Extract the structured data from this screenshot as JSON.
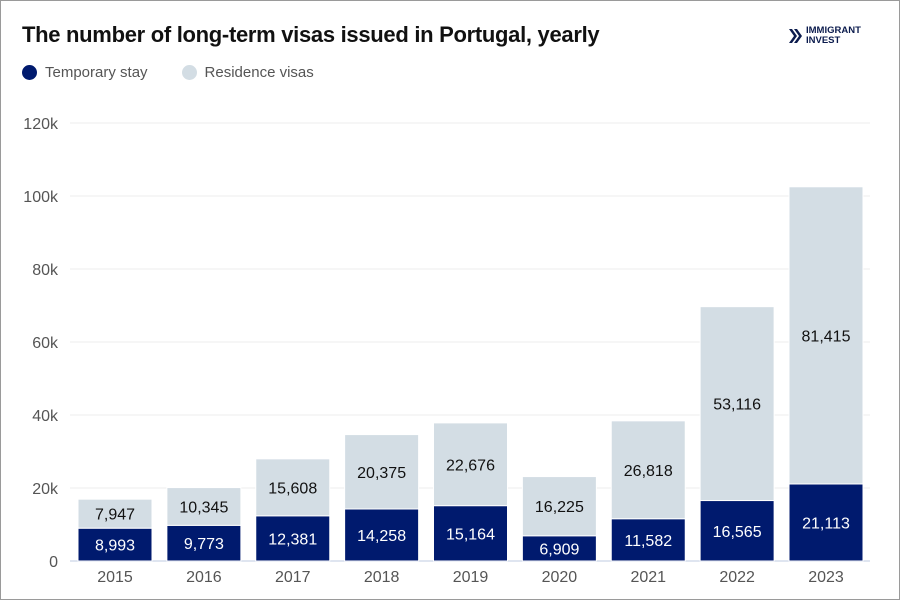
{
  "chart_data": {
    "type": "bar",
    "stacked": true,
    "title": "The number of long-term visas issued in Portugal, yearly",
    "categories": [
      "2015",
      "2016",
      "2017",
      "2018",
      "2019",
      "2020",
      "2021",
      "2022",
      "2023"
    ],
    "series": [
      {
        "name": "Temporary stay",
        "color": "#001a6e",
        "values": [
          8993,
          9773,
          12381,
          14258,
          15164,
          6909,
          11582,
          16565,
          21113
        ],
        "labels": [
          "8,993",
          "9,773",
          "12,381",
          "14,258",
          "15,164",
          "6,909",
          "11,582",
          "16,565",
          "21,113"
        ]
      },
      {
        "name": "Residence visas",
        "color": "#d3dde4",
        "values": [
          7947,
          10345,
          15608,
          20375,
          22676,
          16225,
          26818,
          53116,
          81415
        ],
        "labels": [
          "7,947",
          "10,345",
          "15,608",
          "20,375",
          "22,676",
          "16,225",
          "26,818",
          "53,116",
          "81,415"
        ]
      }
    ],
    "ylim": [
      0,
      120000
    ],
    "yticks": [
      0,
      20000,
      40000,
      60000,
      80000,
      100000,
      120000
    ],
    "ytick_labels": [
      "0",
      "20k",
      "40k",
      "60k",
      "80k",
      "100k",
      "120k"
    ],
    "grid": true,
    "legend_position": "top-left",
    "xlabel": "",
    "ylabel": ""
  },
  "logo": {
    "line1": "IMMIGRANT",
    "line2": "INVEST"
  }
}
